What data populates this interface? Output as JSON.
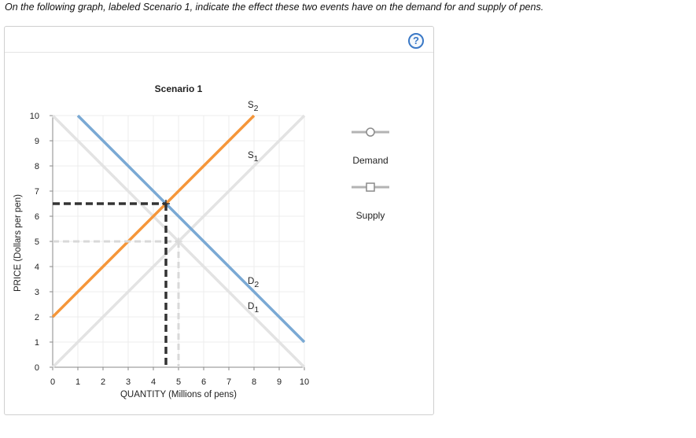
{
  "question": {
    "text": "On the following graph, labeled Scenario 1, indicate the effect these two events have on the demand for and supply of pens."
  },
  "help_icon": {
    "glyph": "?",
    "name": "help-icon"
  },
  "legend": {
    "items": [
      {
        "label": "Demand",
        "marker": "circle"
      },
      {
        "label": "Supply",
        "marker": "square"
      }
    ]
  },
  "colors": {
    "demand_new": "#7aa9d4",
    "supply_new": "#f5963a",
    "original_curves": "#e3e3e3",
    "new_equilibrium_guide": "#333333",
    "original_equilibrium_guide": "#d9d9d9",
    "legend_tool": "#b3b3b3"
  },
  "chart_data": {
    "type": "line",
    "title": "Scenario 1",
    "xlabel": "QUANTITY (Millions of pens)",
    "ylabel": "PRICE (Dollars per pen)",
    "xlim": [
      0,
      10
    ],
    "ylim": [
      0,
      10
    ],
    "x_ticks": [
      0,
      1,
      2,
      3,
      4,
      5,
      6,
      7,
      8,
      9,
      10
    ],
    "y_ticks": [
      0,
      1,
      2,
      3,
      4,
      5,
      6,
      7,
      8,
      9,
      10
    ],
    "grid": true,
    "legend_position": "right",
    "series": [
      {
        "name": "D1",
        "role": "original",
        "points": [
          [
            0,
            10
          ],
          [
            10,
            0
          ]
        ]
      },
      {
        "name": "S1",
        "role": "original",
        "points": [
          [
            0,
            0
          ],
          [
            10,
            10
          ]
        ]
      },
      {
        "name": "D2",
        "role": "new",
        "points": [
          [
            1,
            10
          ],
          [
            10,
            1
          ]
        ]
      },
      {
        "name": "S2",
        "role": "new",
        "points": [
          [
            0,
            2
          ],
          [
            8,
            10
          ]
        ]
      }
    ],
    "curve_labels": [
      {
        "text": "S",
        "sub": "2",
        "x": 8,
        "y": 10
      },
      {
        "text": "S",
        "sub": "1",
        "x": 8,
        "y": 8
      },
      {
        "text": "D",
        "sub": "2",
        "x": 8,
        "y": 3
      },
      {
        "text": "D",
        "sub": "1",
        "x": 8,
        "y": 2
      }
    ],
    "equilibria": [
      {
        "role": "original",
        "x": 5,
        "y": 5
      },
      {
        "role": "new",
        "x": 4.5,
        "y": 6.5
      }
    ]
  }
}
